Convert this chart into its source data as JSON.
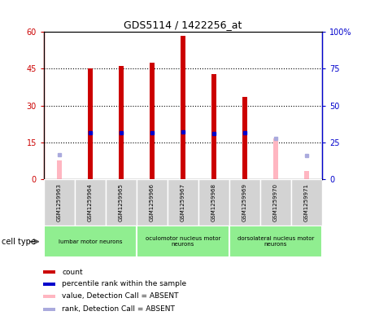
{
  "title": "GDS5114 / 1422256_at",
  "samples": [
    "GSM1259963",
    "GSM1259964",
    "GSM1259965",
    "GSM1259966",
    "GSM1259967",
    "GSM1259968",
    "GSM1259969",
    "GSM1259970",
    "GSM1259971"
  ],
  "count_values": [
    null,
    45.0,
    46.0,
    47.5,
    58.5,
    43.0,
    33.5,
    null,
    null
  ],
  "absent_count_values": [
    7.5,
    null,
    null,
    null,
    null,
    null,
    null,
    16.5,
    3.5
  ],
  "rank_values": [
    null,
    31.5,
    31.5,
    31.5,
    32.0,
    31.0,
    31.5,
    null,
    null
  ],
  "absent_rank_values": [
    16.5,
    null,
    null,
    null,
    null,
    null,
    null,
    27.5,
    16.0
  ],
  "ylim_left": [
    0,
    60
  ],
  "ylim_right": [
    0,
    100
  ],
  "yticks_left": [
    0,
    15,
    30,
    45,
    60
  ],
  "yticks_right": [
    0,
    25,
    50,
    75,
    100
  ],
  "ytick_labels_left": [
    "0",
    "15",
    "30",
    "45",
    "60"
  ],
  "ytick_labels_right": [
    "0",
    "25",
    "50",
    "75",
    "100%"
  ],
  "bar_color_red": "#cc0000",
  "bar_color_pink": "#ffb6c1",
  "dot_color_blue": "#0000cc",
  "dot_color_lightblue": "#aaaadd",
  "cell_groups": [
    {
      "label": "lumbar motor neurons",
      "start": 0,
      "end": 3
    },
    {
      "label": "oculomotor nucleus motor\nneurons",
      "start": 3,
      "end": 6
    },
    {
      "label": "dorsolateral nucleus motor\nneurons",
      "start": 6,
      "end": 9
    }
  ],
  "group_color": "#90ee90",
  "cell_type_label": "cell type",
  "legend_items": [
    {
      "color": "#cc0000",
      "label": "count"
    },
    {
      "color": "#0000cc",
      "label": "percentile rank within the sample"
    },
    {
      "color": "#ffb6c1",
      "label": "value, Detection Call = ABSENT"
    },
    {
      "color": "#aaaadd",
      "label": "rank, Detection Call = ABSENT"
    }
  ]
}
